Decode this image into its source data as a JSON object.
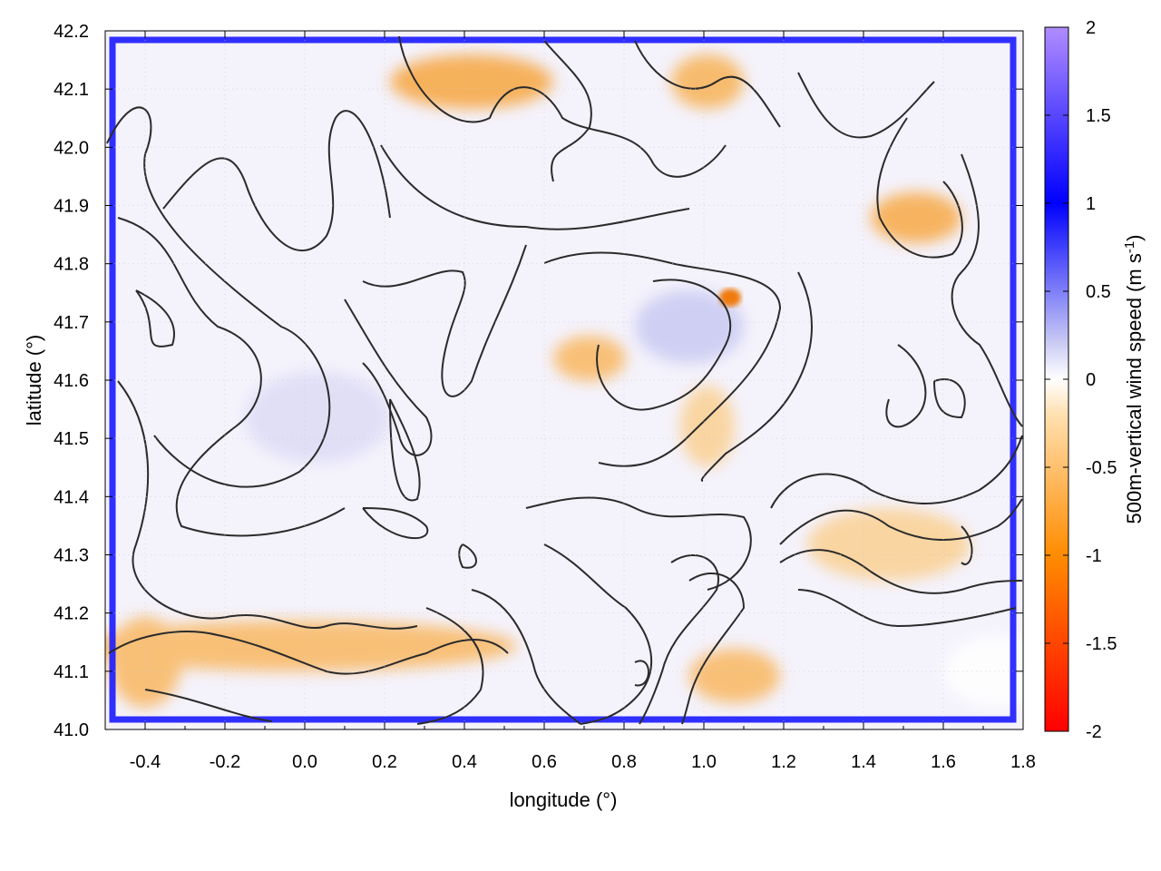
{
  "chart_data": {
    "type": "heatmap",
    "title": "",
    "xlabel": "longitude (°)",
    "ylabel": "latitude (°)",
    "xlim": [
      -0.5,
      1.8
    ],
    "ylim": [
      41.0,
      42.2
    ],
    "x_ticks": [
      "-0.4",
      "-0.2",
      "0.0",
      "0.2",
      "0.4",
      "0.6",
      "0.8",
      "1.0",
      "1.2",
      "1.4",
      "1.6",
      "1.8"
    ],
    "y_ticks": [
      "41.0",
      "41.1",
      "41.2",
      "41.3",
      "41.4",
      "41.5",
      "41.6",
      "41.7",
      "41.8",
      "41.9",
      "42.0",
      "42.1",
      "42.2"
    ],
    "grid": true,
    "colorbar": {
      "label_prefix": "500m-vertical wind speed (m s",
      "label_exponent": "-1",
      "label_suffix": ")",
      "range": [
        -2,
        2
      ],
      "ticks": [
        "2",
        "1.5",
        "1",
        "0.5",
        "0",
        "-0.5",
        "-1",
        "-1.5",
        "-2"
      ],
      "palette": [
        "#ff0000",
        "#ff7f00",
        "#ffcc66",
        "#ffffff",
        "#aaaaee",
        "#0000ff",
        "#aa77ff"
      ]
    },
    "overlay": "terrain elevation contours (black lines)",
    "features": [
      {
        "name": "updraft frame",
        "sign": "positive",
        "value": 1.2
      },
      {
        "name": "downdraft band south",
        "lon": [
          -0.45,
          0.5
        ],
        "lat": [
          41.08,
          41.18
        ],
        "value": -0.8
      },
      {
        "name": "downdraft north",
        "lon": [
          0.2,
          0.5
        ],
        "lat": [
          42.05,
          42.18
        ],
        "value": -0.8
      },
      {
        "name": "downdraft peak",
        "lon": 1.07,
        "lat": 41.73,
        "value": -1.4
      },
      {
        "name": "downdraft NE",
        "lon": 1.6,
        "lat": 41.88,
        "value": -0.8
      }
    ]
  }
}
